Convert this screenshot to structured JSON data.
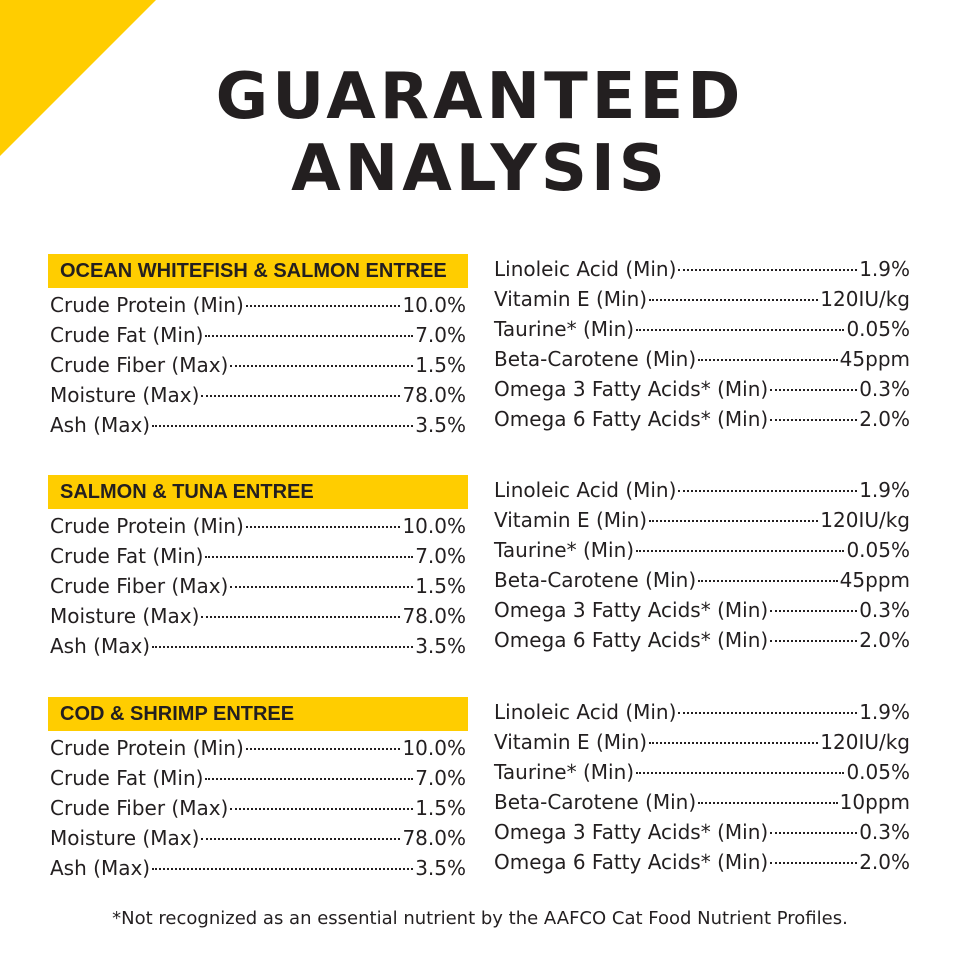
{
  "heading": {
    "line1": "GUARANTEED",
    "line2": "ANALYSIS"
  },
  "colors": {
    "accent": "#ffcd00",
    "text": "#231f20",
    "background": "#ffffff"
  },
  "sections": [
    {
      "title": "OCEAN WHITEFISH & SALMON ENTREE",
      "left": [
        {
          "label": "Crude Protein (Min)",
          "value": "10.0%"
        },
        {
          "label": "Crude Fat (Min)",
          "value": "7.0%"
        },
        {
          "label": "Crude Fiber (Max)",
          "value": "1.5%"
        },
        {
          "label": "Moisture (Max)",
          "value": "78.0%"
        },
        {
          "label": "Ash (Max)",
          "value": "3.5%"
        }
      ],
      "right": [
        {
          "label": "Linoleic Acid (Min)",
          "value": "1.9%"
        },
        {
          "label": "Vitamin E (Min)",
          "value": "120IU/kg"
        },
        {
          "label": "Taurine* (Min)",
          "value": "0.05%"
        },
        {
          "label": "Beta-Carotene (Min)",
          "value": "45ppm"
        },
        {
          "label": "Omega 3 Fatty Acids* (Min)",
          "value": "0.3%"
        },
        {
          "label": "Omega 6 Fatty Acids* (Min)",
          "value": "2.0%"
        }
      ]
    },
    {
      "title": "SALMON & TUNA ENTREE",
      "left": [
        {
          "label": "Crude Protein (Min)",
          "value": "10.0%"
        },
        {
          "label": "Crude Fat (Min)",
          "value": "7.0%"
        },
        {
          "label": "Crude Fiber (Max)",
          "value": "1.5%"
        },
        {
          "label": "Moisture (Max)",
          "value": "78.0%"
        },
        {
          "label": "Ash (Max)",
          "value": "3.5%"
        }
      ],
      "right": [
        {
          "label": "Linoleic Acid (Min)",
          "value": "1.9%"
        },
        {
          "label": "Vitamin E (Min)",
          "value": "120IU/kg"
        },
        {
          "label": "Taurine* (Min)",
          "value": "0.05%"
        },
        {
          "label": "Beta-Carotene (Min)",
          "value": "45ppm"
        },
        {
          "label": "Omega 3 Fatty Acids* (Min)",
          "value": "0.3%"
        },
        {
          "label": "Omega 6 Fatty Acids* (Min)",
          "value": "2.0%"
        }
      ]
    },
    {
      "title": "COD & SHRIMP ENTREE",
      "left": [
        {
          "label": "Crude Protein (Min)",
          "value": "10.0%"
        },
        {
          "label": "Crude Fat (Min)",
          "value": "7.0%"
        },
        {
          "label": "Crude Fiber (Max)",
          "value": "1.5%"
        },
        {
          "label": "Moisture (Max)",
          "value": "78.0%"
        },
        {
          "label": "Ash (Max)",
          "value": "3.5%"
        }
      ],
      "right": [
        {
          "label": "Linoleic Acid (Min)",
          "value": "1.9%"
        },
        {
          "label": "Vitamin E (Min)",
          "value": "120IU/kg"
        },
        {
          "label": "Taurine* (Min)",
          "value": "0.05%"
        },
        {
          "label": "Beta-Carotene (Min)",
          "value": "10ppm"
        },
        {
          "label": "Omega 3 Fatty Acids* (Min)",
          "value": "0.3%"
        },
        {
          "label": "Omega 6 Fatty Acids* (Min)",
          "value": "2.0%"
        }
      ]
    }
  ],
  "footnote": "*Not recognized as an essential nutrient by the AAFCO Cat Food Nutrient Profiles."
}
